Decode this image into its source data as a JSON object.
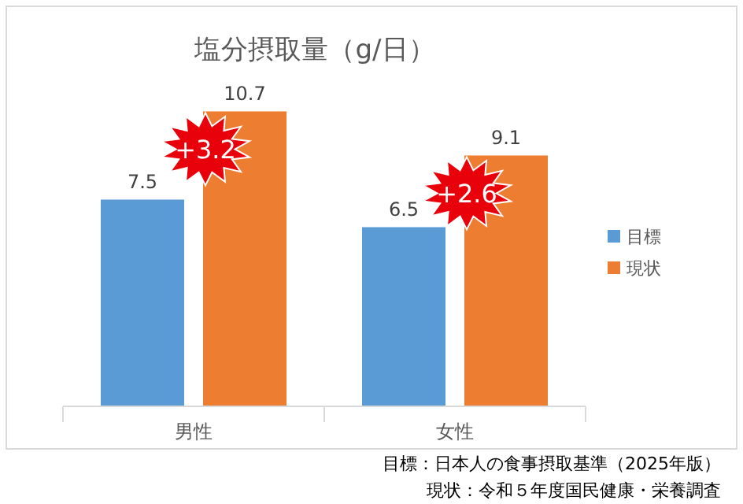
{
  "chart_data": {
    "type": "bar",
    "title": "塩分摂取量（g/日）",
    "categories": [
      "男性",
      "女性"
    ],
    "series": [
      {
        "name": "目標",
        "color": "#5b9bd5",
        "values": [
          7.5,
          6.5
        ]
      },
      {
        "name": "現状",
        "color": "#ed7d31",
        "values": [
          10.7,
          9.1
        ]
      }
    ],
    "data_labels": true,
    "legend": "right",
    "annotations": [
      "+3.2",
      "+2.6",
      "目標：日本人の食事摂取基準（2025年版）",
      "現状：令和５年度国民健康・栄養調査"
    ]
  }
}
